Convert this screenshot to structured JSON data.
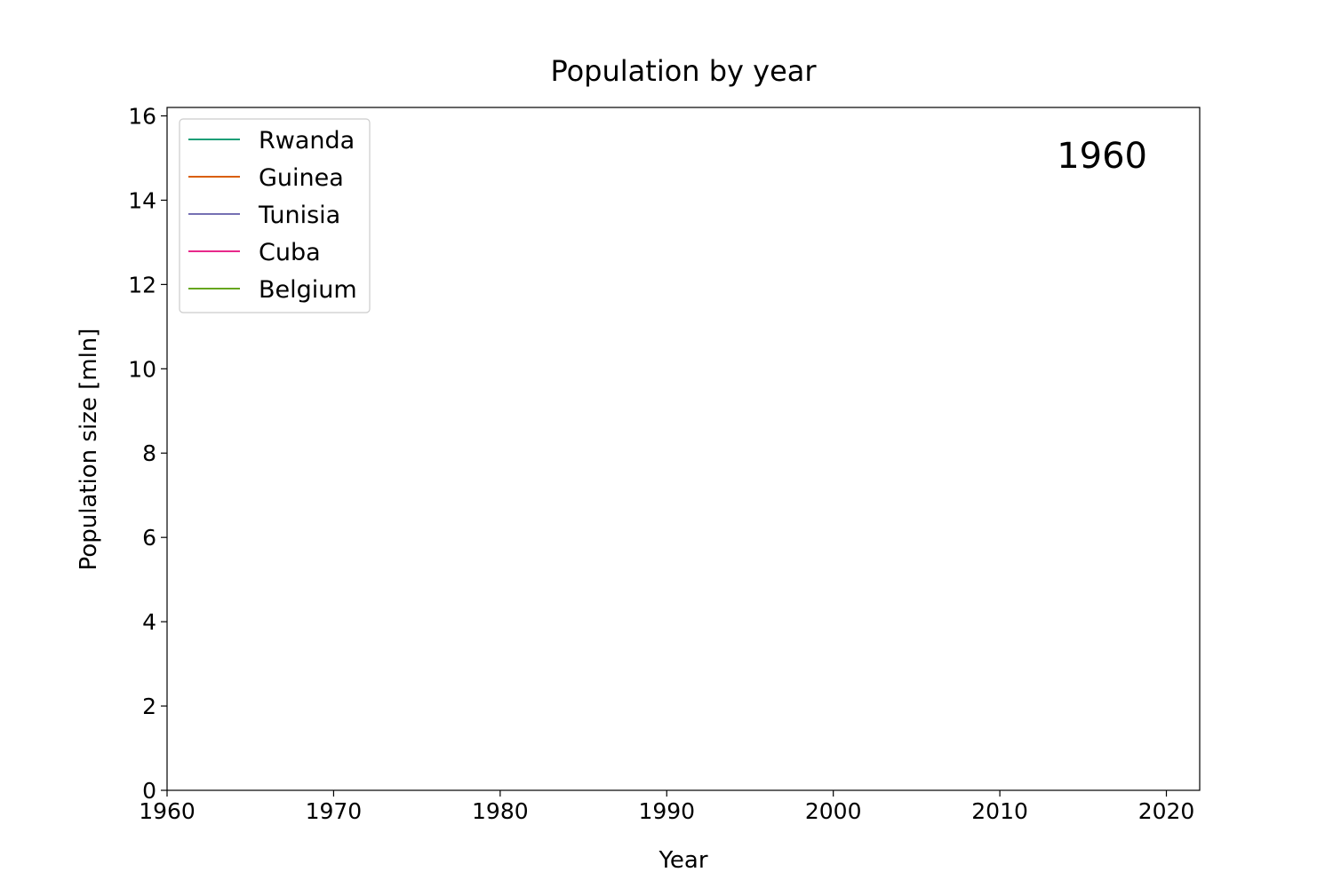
{
  "chart_data": {
    "type": "line",
    "title": "Population by year",
    "xlabel": "Year",
    "ylabel": "Population size [mln]",
    "xlim": [
      1960,
      2022
    ],
    "ylim": [
      0,
      16.2
    ],
    "xticks": [
      1960,
      1970,
      1980,
      1990,
      2000,
      2010,
      2020
    ],
    "yticks": [
      0,
      2,
      4,
      6,
      8,
      10,
      12,
      14,
      16
    ],
    "grid": false,
    "legend_position": "top-left",
    "year_annotation": "1960",
    "series": [
      {
        "name": "Rwanda",
        "color": "#1b9e77",
        "x": [],
        "y": []
      },
      {
        "name": "Guinea",
        "color": "#d95f02",
        "x": [],
        "y": []
      },
      {
        "name": "Tunisia",
        "color": "#7570b3",
        "x": [],
        "y": []
      },
      {
        "name": "Cuba",
        "color": "#e7298a",
        "x": [],
        "y": []
      },
      {
        "name": "Belgium",
        "color": "#66a61e",
        "x": [],
        "y": []
      }
    ]
  }
}
